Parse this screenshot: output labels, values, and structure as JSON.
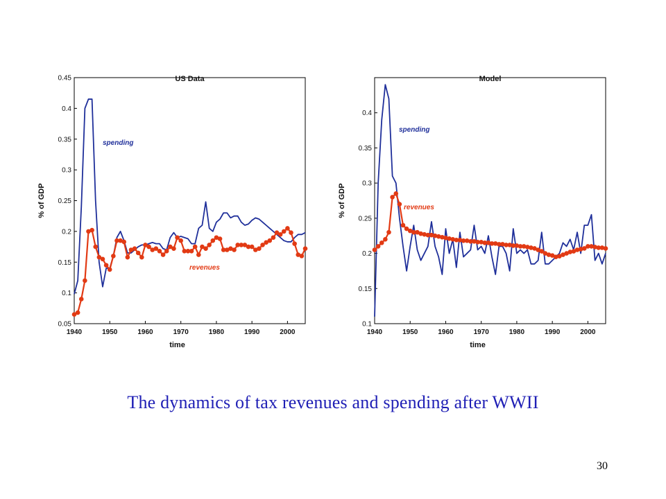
{
  "caption": "The dynamics of tax revenues and spending after WWII",
  "page_number": "30",
  "colors": {
    "spending": "#1f2f9a",
    "revenues": "#e23a14",
    "caption": "#1f1fb5"
  },
  "chart_data": [
    {
      "type": "line",
      "title": "US Data",
      "xlabel": "time",
      "ylabel": "% of GDP",
      "xlim": [
        1940,
        2005
      ],
      "ylim": [
        0.05,
        0.45
      ],
      "x_ticks": [
        "1940",
        "1950",
        "1960",
        "1970",
        "1980",
        "1990",
        "2000"
      ],
      "y_ticks": [
        "0.05",
        "0.1",
        "0.15",
        "0.2",
        "0.25",
        "0.3",
        "0.35",
        "0.4",
        "0.45"
      ],
      "grid": false,
      "series": [
        {
          "name": "spending",
          "marker": "none",
          "x": [
            1940,
            1941,
            1942,
            1943,
            1944,
            1945,
            1946,
            1947,
            1948,
            1949,
            1950,
            1951,
            1952,
            1953,
            1954,
            1955,
            1956,
            1957,
            1958,
            1959,
            1960,
            1961,
            1962,
            1963,
            1964,
            1965,
            1966,
            1967,
            1968,
            1969,
            1970,
            1971,
            1972,
            1973,
            1974,
            1975,
            1976,
            1977,
            1978,
            1979,
            1980,
            1981,
            1982,
            1983,
            1984,
            1985,
            1986,
            1987,
            1988,
            1989,
            1990,
            1991,
            1992,
            1993,
            1994,
            1995,
            1996,
            1997,
            1998,
            1999,
            2000,
            2001,
            2002,
            2003,
            2004,
            2005
          ],
          "values": [
            0.098,
            0.12,
            0.24,
            0.4,
            0.415,
            0.415,
            0.25,
            0.15,
            0.11,
            0.14,
            0.14,
            0.16,
            0.19,
            0.2,
            0.185,
            0.165,
            0.165,
            0.17,
            0.175,
            0.178,
            0.178,
            0.18,
            0.182,
            0.18,
            0.18,
            0.172,
            0.17,
            0.19,
            0.198,
            0.19,
            0.192,
            0.19,
            0.188,
            0.18,
            0.18,
            0.205,
            0.21,
            0.248,
            0.205,
            0.2,
            0.215,
            0.22,
            0.23,
            0.23,
            0.222,
            0.225,
            0.225,
            0.215,
            0.21,
            0.212,
            0.218,
            0.222,
            0.22,
            0.215,
            0.21,
            0.205,
            0.2,
            0.195,
            0.19,
            0.185,
            0.183,
            0.183,
            0.19,
            0.195,
            0.195,
            0.198
          ]
        },
        {
          "name": "revenues",
          "marker": "circle",
          "x": [
            1940,
            1941,
            1942,
            1943,
            1944,
            1945,
            1946,
            1947,
            1948,
            1949,
            1950,
            1951,
            1952,
            1953,
            1954,
            1955,
            1956,
            1957,
            1958,
            1959,
            1960,
            1961,
            1962,
            1963,
            1964,
            1965,
            1966,
            1967,
            1968,
            1969,
            1970,
            1971,
            1972,
            1973,
            1974,
            1975,
            1976,
            1977,
            1978,
            1979,
            1980,
            1981,
            1982,
            1983,
            1984,
            1985,
            1986,
            1987,
            1988,
            1989,
            1990,
            1991,
            1992,
            1993,
            1994,
            1995,
            1996,
            1997,
            1998,
            1999,
            2000,
            2001,
            2002,
            2003,
            2004,
            2005
          ],
          "values": [
            0.065,
            0.068,
            0.09,
            0.12,
            0.2,
            0.202,
            0.175,
            0.158,
            0.155,
            0.145,
            0.138,
            0.16,
            0.185,
            0.185,
            0.183,
            0.158,
            0.17,
            0.172,
            0.165,
            0.158,
            0.178,
            0.175,
            0.17,
            0.172,
            0.168,
            0.162,
            0.168,
            0.175,
            0.172,
            0.19,
            0.185,
            0.168,
            0.168,
            0.168,
            0.175,
            0.162,
            0.175,
            0.172,
            0.178,
            0.185,
            0.19,
            0.188,
            0.17,
            0.17,
            0.172,
            0.17,
            0.178,
            0.178,
            0.178,
            0.175,
            0.175,
            0.17,
            0.172,
            0.178,
            0.182,
            0.185,
            0.19,
            0.198,
            0.195,
            0.2,
            0.205,
            0.198,
            0.18,
            0.162,
            0.16,
            0.172
          ]
        }
      ]
    },
    {
      "type": "line",
      "title": "Model",
      "xlabel": "time",
      "ylabel": "% of GDP",
      "xlim": [
        1940,
        2005
      ],
      "ylim": [
        0.1,
        0.45
      ],
      "x_ticks": [
        "1940",
        "1950",
        "1960",
        "1970",
        "1980",
        "1990",
        "2000"
      ],
      "y_ticks": [
        "0.1",
        "0.15",
        "0.2",
        "0.25",
        "0.3",
        "0.35",
        "0.4"
      ],
      "grid": false,
      "series": [
        {
          "name": "spending",
          "marker": "none",
          "x": [
            1940,
            1941,
            1942,
            1943,
            1944,
            1945,
            1946,
            1947,
            1948,
            1949,
            1950,
            1951,
            1952,
            1953,
            1954,
            1955,
            1956,
            1957,
            1958,
            1959,
            1960,
            1961,
            1962,
            1963,
            1964,
            1965,
            1966,
            1967,
            1968,
            1969,
            1970,
            1971,
            1972,
            1973,
            1974,
            1975,
            1976,
            1977,
            1978,
            1979,
            1980,
            1981,
            1982,
            1983,
            1984,
            1985,
            1986,
            1987,
            1988,
            1989,
            1990,
            1991,
            1992,
            1993,
            1994,
            1995,
            1996,
            1997,
            1998,
            1999,
            2000,
            2001,
            2002,
            2003,
            2004,
            2005
          ],
          "values": [
            0.11,
            0.3,
            0.39,
            0.44,
            0.42,
            0.31,
            0.3,
            0.25,
            0.21,
            0.175,
            0.21,
            0.24,
            0.205,
            0.19,
            0.2,
            0.21,
            0.245,
            0.21,
            0.195,
            0.17,
            0.235,
            0.2,
            0.22,
            0.18,
            0.23,
            0.195,
            0.2,
            0.205,
            0.24,
            0.205,
            0.21,
            0.2,
            0.225,
            0.195,
            0.17,
            0.21,
            0.21,
            0.2,
            0.175,
            0.235,
            0.2,
            0.205,
            0.2,
            0.205,
            0.185,
            0.185,
            0.19,
            0.23,
            0.185,
            0.185,
            0.19,
            0.195,
            0.2,
            0.215,
            0.21,
            0.22,
            0.205,
            0.23,
            0.2,
            0.24,
            0.24,
            0.255,
            0.19,
            0.2,
            0.185,
            0.2
          ]
        },
        {
          "name": "revenues",
          "marker": "circle",
          "x": [
            1940,
            1941,
            1942,
            1943,
            1944,
            1945,
            1946,
            1947,
            1948,
            1949,
            1950,
            1951,
            1952,
            1953,
            1954,
            1955,
            1956,
            1957,
            1958,
            1959,
            1960,
            1961,
            1962,
            1963,
            1964,
            1965,
            1966,
            1967,
            1968,
            1969,
            1970,
            1971,
            1972,
            1973,
            1974,
            1975,
            1976,
            1977,
            1978,
            1979,
            1980,
            1981,
            1982,
            1983,
            1984,
            1985,
            1986,
            1987,
            1988,
            1989,
            1990,
            1991,
            1992,
            1993,
            1994,
            1995,
            1996,
            1997,
            1998,
            1999,
            2000,
            2001,
            2002,
            2003,
            2004,
            2005
          ],
          "values": [
            0.205,
            0.21,
            0.215,
            0.22,
            0.23,
            0.28,
            0.285,
            0.27,
            0.24,
            0.235,
            0.232,
            0.23,
            0.23,
            0.228,
            0.227,
            0.226,
            0.226,
            0.225,
            0.224,
            0.223,
            0.222,
            0.221,
            0.22,
            0.219,
            0.219,
            0.218,
            0.218,
            0.217,
            0.217,
            0.216,
            0.216,
            0.215,
            0.215,
            0.214,
            0.214,
            0.213,
            0.213,
            0.212,
            0.212,
            0.211,
            0.211,
            0.21,
            0.21,
            0.209,
            0.208,
            0.207,
            0.205,
            0.203,
            0.2,
            0.198,
            0.197,
            0.195,
            0.196,
            0.198,
            0.2,
            0.202,
            0.203,
            0.205,
            0.206,
            0.207,
            0.21,
            0.21,
            0.209,
            0.208,
            0.208,
            0.207
          ]
        }
      ]
    }
  ]
}
